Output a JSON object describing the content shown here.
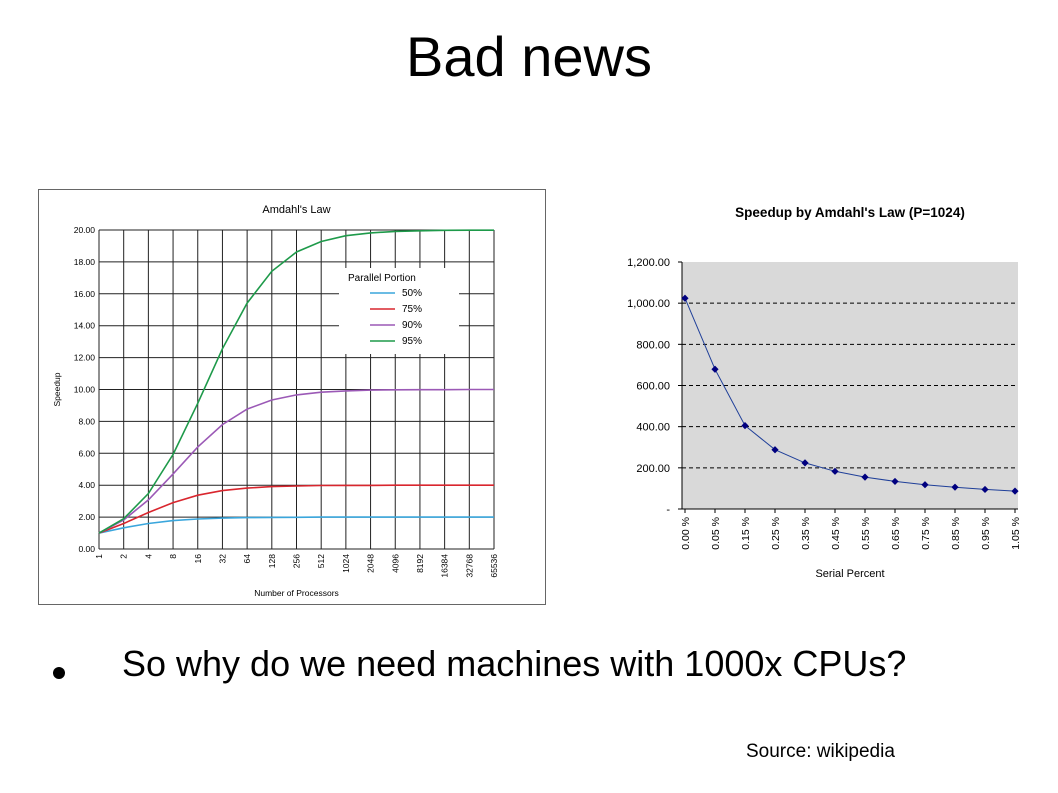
{
  "slide": {
    "title": "Bad news",
    "bullet_text": "So why do we need machines with 1000x CPUs?",
    "source": "Source: wikipedia"
  },
  "chart_data": [
    {
      "type": "line",
      "title": "Amdahl's Law",
      "xlabel": "Number of Processors",
      "ylabel": "Speedup",
      "x": [
        "1",
        "2",
        "4",
        "8",
        "16",
        "32",
        "64",
        "128",
        "256",
        "512",
        "1024",
        "2048",
        "4096",
        "8192",
        "16384",
        "32768",
        "65536"
      ],
      "xscale": "log2",
      "ylim": [
        0,
        20
      ],
      "yticks": [
        "0.00",
        "2.00",
        "4.00",
        "6.00",
        "8.00",
        "10.00",
        "12.00",
        "14.00",
        "16.00",
        "18.00",
        "20.00"
      ],
      "grid": true,
      "legend_title": "Parallel Portion",
      "legend_position": "right",
      "series": [
        {
          "name": "50%",
          "color": "#3aa6dc",
          "values": [
            1.0,
            1.33,
            1.6,
            1.78,
            1.88,
            1.94,
            1.97,
            1.98,
            1.99,
            2.0,
            2.0,
            2.0,
            2.0,
            2.0,
            2.0,
            2.0,
            2.0
          ]
        },
        {
          "name": "75%",
          "color": "#d9262e",
          "values": [
            1.0,
            1.6,
            2.29,
            2.91,
            3.37,
            3.66,
            3.82,
            3.91,
            3.95,
            3.98,
            3.99,
            3.99,
            4.0,
            4.0,
            4.0,
            4.0,
            4.0
          ]
        },
        {
          "name": "90%",
          "color": "#9b59b6",
          "values": [
            1.0,
            1.82,
            3.08,
            4.71,
            6.4,
            7.8,
            8.77,
            9.34,
            9.66,
            9.83,
            9.91,
            9.96,
            9.98,
            9.99,
            9.99,
            10.0,
            10.0
          ]
        },
        {
          "name": "95%",
          "color": "#1e9a4a",
          "values": [
            1.0,
            1.9,
            3.48,
            5.93,
            9.14,
            12.55,
            15.42,
            17.41,
            18.62,
            19.28,
            19.64,
            19.82,
            19.91,
            19.95,
            19.98,
            19.99,
            19.99
          ]
        }
      ]
    },
    {
      "type": "line",
      "title": "Speedup by Amdahl's Law (P=1024)",
      "xlabel": "Serial Percent",
      "ylabel": "",
      "x": [
        "0.00 %",
        "0.05 %",
        "0.15 %",
        "0.25 %",
        "0.35 %",
        "0.45 %",
        "0.55 %",
        "0.65 %",
        "0.75 %",
        "0.85 %",
        "0.95 %",
        "1.05 %"
      ],
      "ylim": [
        0,
        1200
      ],
      "yticks": [
        "-",
        "200.00",
        "400.00",
        "600.00",
        "800.00",
        "1,000.00",
        "1,200.00"
      ],
      "grid": "dashed",
      "plot_background": "#d9d9d9",
      "marker_color": "#00007f",
      "series": [
        {
          "name": "",
          "color": "#1f3f99",
          "values": [
            1024,
            679,
            405,
            288,
            224,
            183,
            155,
            134,
            118,
            106,
            95,
            87
          ]
        }
      ]
    }
  ]
}
